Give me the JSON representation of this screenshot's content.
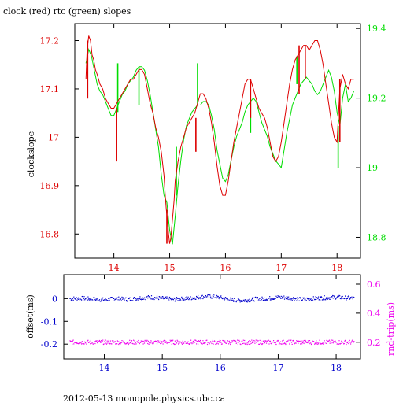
{
  "title": "clock (red) rtc (green) slopes",
  "footer": "2012-05-13  monopole.physics.ubc.ca",
  "colors": {
    "clock": "#dd0000",
    "rtc": "#00dd00",
    "offset": "#0000cc",
    "rndtrip": "#ee00ee",
    "axis": "#000000"
  },
  "chart_data": [
    {
      "type": "line",
      "title": "clock (red) rtc (green) slopes",
      "ylabel": "clockslope",
      "xlim": [
        13.3,
        18.42
      ],
      "ylim": [
        16.75,
        17.235
      ],
      "y2lim": [
        18.74,
        19.414
      ],
      "xticks": [
        14,
        15,
        16,
        17,
        18
      ],
      "yticks": [
        16.8,
        16.9,
        17,
        17.1,
        17.2
      ],
      "yticklabels": [
        "16.8",
        "16.9",
        "17",
        "17.1",
        "17.2"
      ],
      "y2ticks": [
        18.8,
        19,
        19.2,
        19.4
      ],
      "y2ticklabels": [
        "18.8",
        "19",
        "19.2",
        "19.4"
      ],
      "series": [
        {
          "key": "clock",
          "axis": "left",
          "x": [
            13.5,
            13.52,
            13.55,
            13.58,
            13.61,
            13.64,
            13.67,
            13.7,
            13.75,
            13.8,
            13.85,
            13.9,
            13.95,
            14.0,
            14.05,
            14.1,
            14.15,
            14.2,
            14.25,
            14.3,
            14.35,
            14.4,
            14.45,
            14.5,
            14.55,
            14.6,
            14.65,
            14.7,
            14.75,
            14.8,
            14.85,
            14.9,
            14.92,
            14.94,
            14.96,
            14.98,
            15.0,
            15.02,
            15.05,
            15.08,
            15.1,
            15.15,
            15.2,
            15.25,
            15.3,
            15.35,
            15.4,
            15.45,
            15.5,
            15.55,
            15.6,
            15.65,
            15.7,
            15.75,
            15.8,
            15.85,
            15.9,
            15.95,
            16.0,
            16.05,
            16.1,
            16.15,
            16.2,
            16.25,
            16.3,
            16.35,
            16.4,
            16.45,
            16.5,
            16.55,
            16.6,
            16.65,
            16.7,
            16.75,
            16.8,
            16.85,
            16.9,
            16.95,
            17.0,
            17.05,
            17.1,
            17.15,
            17.2,
            17.25,
            17.3,
            17.35,
            17.4,
            17.45,
            17.5,
            17.55,
            17.6,
            17.65,
            17.7,
            17.75,
            17.8,
            17.85,
            17.9,
            17.95,
            18.0,
            18.05,
            18.1,
            18.15,
            18.2,
            18.25,
            18.3
          ],
          "y": [
            17.12,
            17.18,
            17.21,
            17.2,
            17.17,
            17.16,
            17.14,
            17.13,
            17.11,
            17.1,
            17.08,
            17.07,
            17.06,
            17.06,
            17.07,
            17.08,
            17.09,
            17.1,
            17.11,
            17.12,
            17.12,
            17.13,
            17.14,
            17.14,
            17.13,
            17.1,
            17.07,
            17.05,
            17.02,
            17.0,
            16.97,
            16.92,
            16.88,
            16.85,
            16.83,
            16.8,
            16.78,
            16.79,
            16.83,
            16.87,
            16.91,
            16.95,
            16.98,
            17.0,
            17.02,
            17.03,
            17.04,
            17.05,
            17.07,
            17.09,
            17.09,
            17.08,
            17.06,
            17.03,
            16.99,
            16.94,
            16.9,
            16.88,
            16.88,
            16.91,
            16.95,
            16.99,
            17.02,
            17.05,
            17.08,
            17.11,
            17.12,
            17.12,
            17.1,
            17.08,
            17.06,
            17.05,
            17.04,
            17.02,
            16.99,
            16.96,
            16.95,
            16.96,
            16.99,
            17.03,
            17.07,
            17.11,
            17.14,
            17.16,
            17.17,
            17.18,
            17.19,
            17.19,
            17.18,
            17.19,
            17.2,
            17.2,
            17.18,
            17.15,
            17.11,
            17.07,
            17.03,
            17.0,
            16.99,
            17.1,
            17.13,
            17.11,
            17.1,
            17.12,
            17.12
          ]
        },
        {
          "key": "rtc",
          "axis": "right",
          "x": [
            13.5,
            13.55,
            13.6,
            13.65,
            13.7,
            13.75,
            13.8,
            13.85,
            13.9,
            13.95,
            14.0,
            14.05,
            14.1,
            14.15,
            14.2,
            14.25,
            14.3,
            14.35,
            14.4,
            14.45,
            14.5,
            14.55,
            14.6,
            14.65,
            14.7,
            14.75,
            14.8,
            14.85,
            14.9,
            14.95,
            15.0,
            15.05,
            15.1,
            15.15,
            15.2,
            15.25,
            15.3,
            15.35,
            15.4,
            15.45,
            15.5,
            15.55,
            15.6,
            15.65,
            15.7,
            15.75,
            15.8,
            15.85,
            15.9,
            15.95,
            16.0,
            16.05,
            16.1,
            16.15,
            16.2,
            16.25,
            16.3,
            16.35,
            16.4,
            16.45,
            16.5,
            16.55,
            16.6,
            16.65,
            16.7,
            16.75,
            16.8,
            16.85,
            16.9,
            16.95,
            17.0,
            17.05,
            17.1,
            17.15,
            17.2,
            17.25,
            17.3,
            17.35,
            17.4,
            17.45,
            17.5,
            17.55,
            17.6,
            17.65,
            17.7,
            17.75,
            17.8,
            17.85,
            17.9,
            17.95,
            18.0,
            18.05,
            18.1,
            18.15,
            18.2,
            18.25,
            18.3
          ],
          "y": [
            19.3,
            19.34,
            19.32,
            19.28,
            19.24,
            19.22,
            19.21,
            19.19,
            19.17,
            19.15,
            19.15,
            19.17,
            19.19,
            19.21,
            19.22,
            19.24,
            19.25,
            19.26,
            19.28,
            19.29,
            19.29,
            19.28,
            19.25,
            19.21,
            19.16,
            19.11,
            19.06,
            18.98,
            18.92,
            18.9,
            18.82,
            18.78,
            18.86,
            18.95,
            19.02,
            19.08,
            19.12,
            19.14,
            19.16,
            19.17,
            19.18,
            19.18,
            19.19,
            19.19,
            19.18,
            19.15,
            19.11,
            19.05,
            19.01,
            18.97,
            18.96,
            18.98,
            19.02,
            19.06,
            19.09,
            19.11,
            19.13,
            19.16,
            19.18,
            19.19,
            19.2,
            19.19,
            19.16,
            19.13,
            19.11,
            19.09,
            19.06,
            19.04,
            19.02,
            19.01,
            19.0,
            19.05,
            19.1,
            19.14,
            19.18,
            19.2,
            19.22,
            19.24,
            19.25,
            19.26,
            19.25,
            19.24,
            19.22,
            19.21,
            19.22,
            19.24,
            19.26,
            19.28,
            19.26,
            19.22,
            19.16,
            19.12,
            19.2,
            19.24,
            19.19,
            19.2,
            19.22
          ]
        }
      ],
      "spikes": {
        "clock": [
          {
            "x": 13.53,
            "y0": 17.08,
            "y1": 17.2
          },
          {
            "x": 14.05,
            "y0": 16.95,
            "y1": 17.06
          },
          {
            "x": 14.95,
            "y0": 16.85,
            "y1": 16.78
          },
          {
            "x": 15.47,
            "y0": 17.04,
            "y1": 16.97
          },
          {
            "x": 16.45,
            "y0": 17.12,
            "y1": 17.04
          },
          {
            "x": 17.32,
            "y0": 17.19,
            "y1": 17.09
          },
          {
            "x": 17.43,
            "y0": 17.19,
            "y1": 17.12
          },
          {
            "x": 18.05,
            "y0": 16.99,
            "y1": 17.12
          }
        ],
        "rtc": [
          {
            "x": 14.07,
            "y0": 19.16,
            "y1": 19.3
          },
          {
            "x": 14.45,
            "y0": 19.29,
            "y1": 19.18
          },
          {
            "x": 15.12,
            "y0": 18.92,
            "y1": 19.06
          },
          {
            "x": 15.5,
            "y0": 19.18,
            "y1": 19.3
          },
          {
            "x": 16.45,
            "y0": 19.19,
            "y1": 19.1
          },
          {
            "x": 17.28,
            "y0": 19.24,
            "y1": 19.32
          },
          {
            "x": 18.02,
            "y0": 19.12,
            "y1": 19.0
          }
        ]
      }
    },
    {
      "type": "scatter",
      "ylabel": "offset(ms)",
      "y2label": "rnd-trip(ms)",
      "xlim": [
        13.3,
        18.42
      ],
      "ylim": [
        -0.265,
        0.105
      ],
      "y2lim": [
        0.085,
        0.665
      ],
      "xticks": [
        14,
        15,
        16,
        17,
        18
      ],
      "yticks": [
        0,
        -0.1,
        -0.2
      ],
      "yticklabels": [
        "0",
        "-0.1",
        "-0.2"
      ],
      "y2ticks": [
        0.2,
        0.4,
        0.6
      ],
      "y2ticklabels": [
        "0.2",
        "0.4",
        "0.6"
      ],
      "series": [
        {
          "key": "offset",
          "axis": "left",
          "x": [
            13.4,
            13.6,
            13.8,
            14.0,
            14.2,
            14.4,
            14.6,
            14.8,
            15.0,
            15.2,
            15.4,
            15.6,
            15.8,
            16.0,
            16.2,
            16.4,
            16.6,
            16.8,
            17.0,
            17.2,
            17.4,
            17.6,
            17.8,
            18.0,
            18.2,
            18.3
          ],
          "y": [
            0.0,
            0.002,
            -0.003,
            -0.005,
            0.0,
            -0.004,
            0.003,
            0.006,
            0.001,
            -0.004,
            0.0,
            0.006,
            0.01,
            0.004,
            -0.006,
            -0.008,
            -0.002,
            0.0,
            0.006,
            0.003,
            -0.004,
            0.0,
            0.004,
            0.006,
            0.003,
            0.001
          ]
        },
        {
          "key": "rndtrip",
          "axis": "right",
          "x": [
            13.4,
            18.3
          ],
          "y": [
            0.2,
            0.2
          ]
        }
      ]
    }
  ]
}
